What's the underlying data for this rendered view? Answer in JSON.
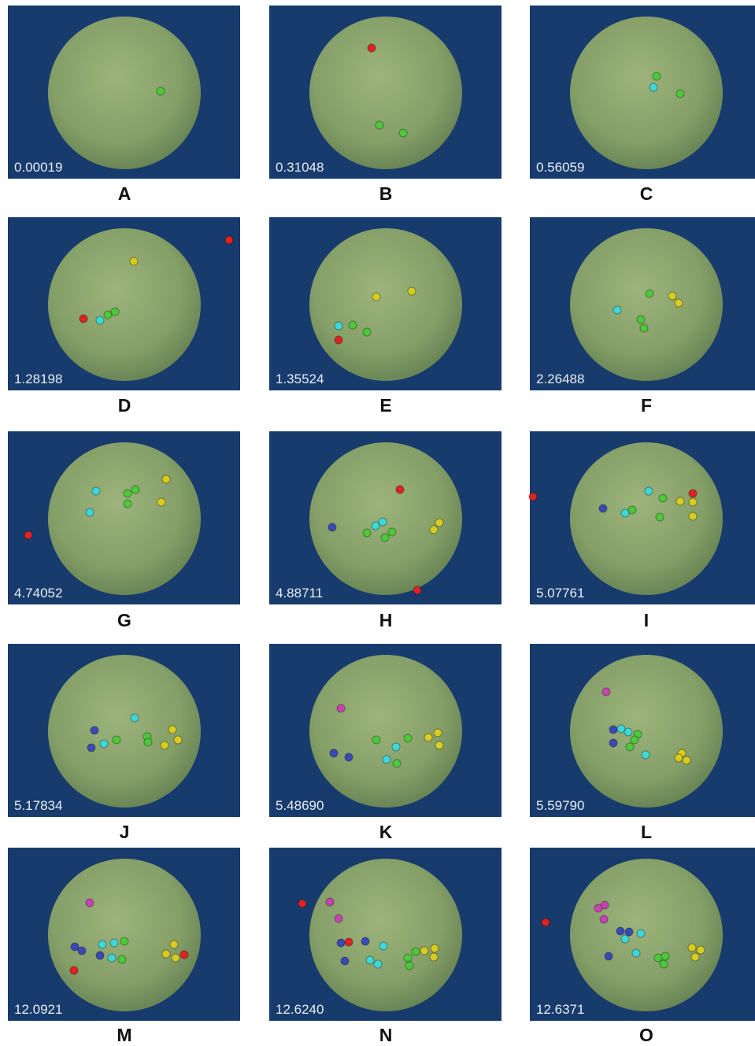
{
  "panels": [
    {
      "time": "0.00019",
      "label": "A"
    },
    {
      "time": "0.31048",
      "label": "B"
    },
    {
      "time": "0.56059",
      "label": "C"
    },
    {
      "time": "1.28198",
      "label": "D"
    },
    {
      "time": "1.35524",
      "label": "E"
    },
    {
      "time": "2.26488",
      "label": "F"
    },
    {
      "time": "4.74052",
      "label": "G"
    },
    {
      "time": "4.88711",
      "label": "H"
    },
    {
      "time": "5.07761",
      "label": "I"
    },
    {
      "time": "5.17834",
      "label": "J"
    },
    {
      "time": "5.48690",
      "label": "K"
    },
    {
      "time": "5.59790",
      "label": "L"
    },
    {
      "time": "12.0921",
      "label": "M"
    },
    {
      "time": "12.6240",
      "label": "N"
    },
    {
      "time": "12.6371",
      "label": "O"
    }
  ]
}
